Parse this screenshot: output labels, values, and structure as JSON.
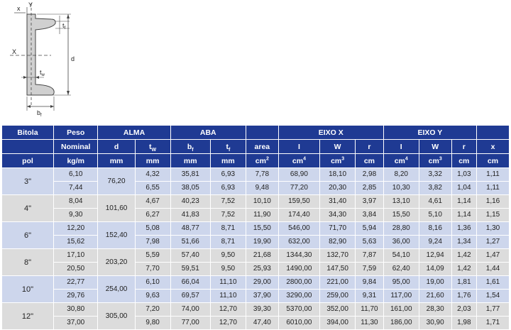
{
  "diagram": {
    "labels": {
      "x_top": "x",
      "y_top": "Y",
      "tf": "t",
      "tf_sub": "f",
      "x_axis": "X",
      "d": "d",
      "tw": "t",
      "tw_sub": "w",
      "bf": "b",
      "bf_sub": "f"
    }
  },
  "table": {
    "header_row1": {
      "bitola": "Bitola",
      "peso": "Peso",
      "alma": "ALMA",
      "aba": "ABA",
      "eixo_x": "EIXO X",
      "eixo_y": "EIXO Y"
    },
    "header_row2": {
      "nominal": "Nominal",
      "d": "d",
      "tw": "t",
      "tw_sub": "W",
      "bf": "b",
      "bf_sub": "f",
      "tf": "t",
      "tf_sub": "f",
      "area": "area",
      "ix": "I",
      "wx": "W",
      "rx": "r",
      "iy": "I",
      "wy": "W",
      "ry": "r",
      "x": "x"
    },
    "header_row3": {
      "pol": "pol",
      "kgm": "kg/m",
      "d_unit": "mm",
      "tw_unit": "mm",
      "bf_unit": "mm",
      "tf_unit": "mm",
      "area_unit": "cm",
      "area_exp": "2",
      "ix_unit": "cm",
      "ix_exp": "4",
      "wx_unit": "cm",
      "wx_exp": "3",
      "rx_unit": "cm",
      "iy_unit": "cm",
      "iy_exp": "4",
      "wy_unit": "cm",
      "wy_exp": "3",
      "ry_unit": "cm",
      "x_unit": "cm"
    },
    "groups": [
      {
        "bitola": "3\"",
        "d": "76,20",
        "rows": [
          {
            "peso": "6,10",
            "tw": "4,32",
            "bf": "35,81",
            "tf": "6,93",
            "area": "7,78",
            "ix": "68,90",
            "wx": "18,10",
            "rx": "2,98",
            "iy": "8,20",
            "wy": "3,32",
            "ry": "1,03",
            "x": "1,11"
          },
          {
            "peso": "7,44",
            "tw": "6,55",
            "bf": "38,05",
            "tf": "6,93",
            "area": "9,48",
            "ix": "77,20",
            "wx": "20,30",
            "rx": "2,85",
            "iy": "10,30",
            "wy": "3,82",
            "ry": "1,04",
            "x": "1,11"
          }
        ]
      },
      {
        "bitola": "4\"",
        "d": "101,60",
        "rows": [
          {
            "peso": "8,04",
            "tw": "4,67",
            "bf": "40,23",
            "tf": "7,52",
            "area": "10,10",
            "ix": "159,50",
            "wx": "31,40",
            "rx": "3,97",
            "iy": "13,10",
            "wy": "4,61",
            "ry": "1,14",
            "x": "1,16"
          },
          {
            "peso": "9,30",
            "tw": "6,27",
            "bf": "41,83",
            "tf": "7,52",
            "area": "11,90",
            "ix": "174,40",
            "wx": "34,30",
            "rx": "3,84",
            "iy": "15,50",
            "wy": "5,10",
            "ry": "1,14",
            "x": "1,15"
          }
        ]
      },
      {
        "bitola": "6\"",
        "d": "152,40",
        "rows": [
          {
            "peso": "12,20",
            "tw": "5,08",
            "bf": "48,77",
            "tf": "8,71",
            "area": "15,50",
            "ix": "546,00",
            "wx": "71,70",
            "rx": "5,94",
            "iy": "28,80",
            "wy": "8,16",
            "ry": "1,36",
            "x": "1,30"
          },
          {
            "peso": "15,62",
            "tw": "7,98",
            "bf": "51,66",
            "tf": "8,71",
            "area": "19,90",
            "ix": "632,00",
            "wx": "82,90",
            "rx": "5,63",
            "iy": "36,00",
            "wy": "9,24",
            "ry": "1,34",
            "x": "1,27"
          }
        ]
      },
      {
        "bitola": "8\"",
        "d": "203,20",
        "rows": [
          {
            "peso": "17,10",
            "tw": "5,59",
            "bf": "57,40",
            "tf": "9,50",
            "area": "21,68",
            "ix": "1344,30",
            "wx": "132,70",
            "rx": "7,87",
            "iy": "54,10",
            "wy": "12,94",
            "ry": "1,42",
            "x": "1,47"
          },
          {
            "peso": "20,50",
            "tw": "7,70",
            "bf": "59,51",
            "tf": "9,50",
            "area": "25,93",
            "ix": "1490,00",
            "wx": "147,50",
            "rx": "7,59",
            "iy": "62,40",
            "wy": "14,09",
            "ry": "1,42",
            "x": "1,44"
          }
        ]
      },
      {
        "bitola": "10\"",
        "d": "254,00",
        "rows": [
          {
            "peso": "22,77",
            "tw": "6,10",
            "bf": "66,04",
            "tf": "11,10",
            "area": "29,00",
            "ix": "2800,00",
            "wx": "221,00",
            "rx": "9,84",
            "iy": "95,00",
            "wy": "19,00",
            "ry": "1,81",
            "x": "1,61"
          },
          {
            "peso": "29,76",
            "tw": "9,63",
            "bf": "69,57",
            "tf": "11,10",
            "area": "37,90",
            "ix": "3290,00",
            "wx": "259,00",
            "rx": "9,31",
            "iy": "117,00",
            "wy": "21,60",
            "ry": "1,76",
            "x": "1,54"
          }
        ]
      },
      {
        "bitola": "12\"",
        "d": "305,00",
        "rows": [
          {
            "peso": "30,80",
            "tw": "7,20",
            "bf": "74,00",
            "tf": "12,70",
            "area": "39,30",
            "ix": "5370,00",
            "wx": "352,00",
            "rx": "11,70",
            "iy": "161,00",
            "wy": "28,30",
            "ry": "2,03",
            "x": "1,77"
          },
          {
            "peso": "37,00",
            "tw": "9,80",
            "bf": "77,00",
            "tf": "12,70",
            "area": "47,40",
            "ix": "6010,00",
            "wx": "394,00",
            "rx": "11,30",
            "iy": "186,00",
            "wy": "30,90",
            "ry": "1,98",
            "x": "1,71"
          }
        ]
      }
    ]
  }
}
